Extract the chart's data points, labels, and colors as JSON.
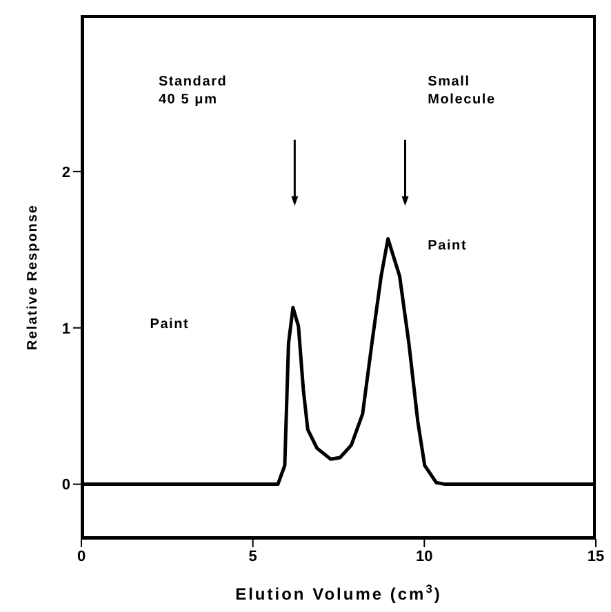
{
  "chart_data": {
    "type": "line",
    "xlabel": "Elution Volume (cm$^{3}$)",
    "ylabel": "Relative Response",
    "x": [
      0,
      5.73,
      5.93,
      6.04,
      6.17,
      6.33,
      6.47,
      6.6,
      6.87,
      7.27,
      7.54,
      7.87,
      8.2,
      8.47,
      8.74,
      8.94,
      9.28,
      9.55,
      9.81,
      10.01,
      10.35,
      10.6,
      15
    ],
    "series": [
      {
        "color": "#000000",
        "values": [
          0,
          0,
          0.12,
          0.9,
          1.13,
          1.01,
          0.61,
          0.35,
          0.23,
          0.16,
          0.17,
          0.25,
          0.45,
          0.9,
          1.33,
          1.57,
          1.33,
          0.9,
          0.4,
          0.12,
          0.01,
          0,
          0
        ]
      }
    ],
    "xlim": [
      0,
      15
    ],
    "xticks": [
      0,
      5,
      10,
      15
    ],
    "ylim": [
      -0.35,
      3
    ],
    "yticks": [
      0,
      1,
      2
    ],
    "grid": false,
    "legend": false,
    "marker": "none",
    "line_style": "solid",
    "annotations": [
      "Standard\n40 5 μm",
      "Small\nMolecule",
      "Paint",
      "Paint"
    ]
  }
}
